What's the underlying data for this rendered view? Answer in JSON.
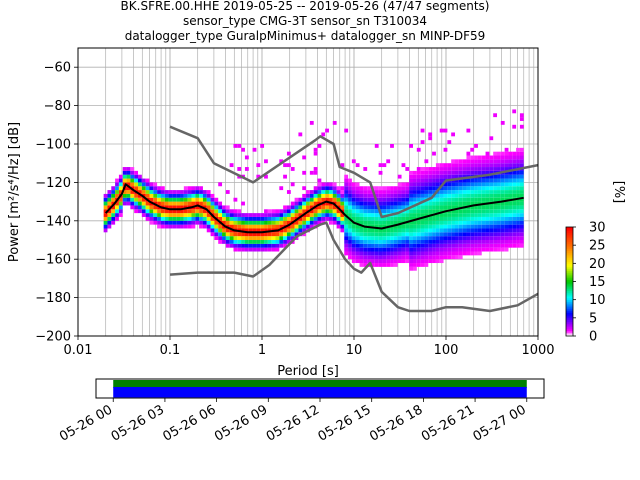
{
  "title_lines": [
    "BK.SFRE.00.HHE   2019-05-25 -- 2019-05-26  (47/47 segments)",
    "sensor_type CMG-3T sensor_sn T310034",
    "datalogger_type GuralpMinimus+ datalogger_sn MINP-DF59"
  ],
  "chart_data": [
    {
      "type": "heatmap",
      "xlabel": "Period [s]",
      "ylabel": "Power [m²/s⁴/Hz] [dB]",
      "x_scale": "log",
      "xlim": [
        0.01,
        1000
      ],
      "ylim": [
        -200,
        -50
      ],
      "x_ticks": [
        {
          "value": 0.01,
          "label": "0.01"
        },
        {
          "value": 0.1,
          "label": "0.1"
        },
        {
          "value": 1,
          "label": "1"
        },
        {
          "value": 10,
          "label": "10"
        },
        {
          "value": 100,
          "label": "100"
        },
        {
          "value": 1000,
          "label": "1000"
        }
      ],
      "y_ticks": [
        -200,
        -180,
        -160,
        -140,
        -120,
        -100,
        -80,
        -60
      ],
      "grid": true,
      "colorbar": {
        "label": "[%]",
        "ticks": [
          0,
          5,
          10,
          15,
          20,
          25,
          30
        ],
        "range": [
          0,
          30
        ]
      },
      "series": [
        {
          "name": "",
          "color": "#000000",
          "points": [
            [
              0.02,
              -136
            ],
            [
              0.025,
              -131
            ],
            [
              0.03,
              -126
            ],
            [
              0.033,
              -121
            ],
            [
              0.04,
              -124
            ],
            [
              0.05,
              -127
            ],
            [
              0.06,
              -130
            ],
            [
              0.08,
              -133
            ],
            [
              0.1,
              -134
            ],
            [
              0.13,
              -134
            ],
            [
              0.17,
              -133
            ],
            [
              0.2,
              -132
            ],
            [
              0.25,
              -134
            ],
            [
              0.3,
              -138
            ],
            [
              0.4,
              -143
            ],
            [
              0.5,
              -145
            ],
            [
              0.7,
              -146
            ],
            [
              1,
              -146
            ],
            [
              1.5,
              -145
            ],
            [
              2,
              -142
            ],
            [
              3,
              -136
            ],
            [
              4,
              -132
            ],
            [
              5,
              -130
            ],
            [
              6,
              -131
            ],
            [
              7,
              -134
            ],
            [
              8,
              -137
            ],
            [
              10,
              -141
            ],
            [
              13,
              -143
            ],
            [
              20,
              -144
            ],
            [
              30,
              -142
            ],
            [
              50,
              -139
            ],
            [
              100,
              -135
            ],
            [
              200,
              -132
            ],
            [
              400,
              -130
            ],
            [
              700,
              -128
            ]
          ]
        },
        {
          "name": "",
          "color": "#666666",
          "points": [
            [
              0.1,
              -91
            ],
            [
              0.2,
              -97
            ],
            [
              0.3,
              -110
            ],
            [
              0.8,
              -120
            ],
            [
              3.8,
              -98
            ],
            [
              4.3,
              -96
            ],
            [
              6,
              -100
            ],
            [
              7,
              -112
            ],
            [
              10,
              -115
            ],
            [
              15,
              -120
            ],
            [
              20,
              -138
            ],
            [
              30,
              -136
            ],
            [
              70,
              -128
            ],
            [
              100,
              -119
            ],
            [
              300,
              -116
            ],
            [
              1000,
              -111
            ]
          ]
        },
        {
          "name": "",
          "color": "#666666",
          "points": [
            [
              0.1,
              -168
            ],
            [
              0.2,
              -167
            ],
            [
              0.5,
              -167
            ],
            [
              0.8,
              -169
            ],
            [
              1.2,
              -163
            ],
            [
              2.4,
              -148
            ],
            [
              4.3,
              -142
            ],
            [
              5,
              -141
            ],
            [
              6,
              -150
            ],
            [
              8,
              -160
            ],
            [
              10,
              -165
            ],
            [
              12,
              -167
            ],
            [
              15,
              -162
            ],
            [
              20,
              -177
            ],
            [
              30,
              -185
            ],
            [
              40,
              -187
            ],
            [
              70,
              -187
            ],
            [
              100,
              -185
            ],
            [
              150,
              -185
            ],
            [
              300,
              -187
            ],
            [
              600,
              -184
            ],
            [
              1000,
              -178
            ]
          ]
        }
      ]
    },
    {
      "type": "bar",
      "x_ticks": [
        "05-26 00",
        "05-26 03",
        "05-26 06",
        "05-26 09",
        "05-26 12",
        "05-26 15",
        "05-26 18",
        "05-26 21",
        "05-27 00"
      ],
      "xlim_hours": [
        -1,
        25
      ],
      "series": [
        {
          "name": "",
          "color": "#008000",
          "values": [
            [
              0,
              24
            ]
          ]
        },
        {
          "name": "",
          "color": "#0000ff",
          "values": [
            [
              0,
              24
            ]
          ]
        }
      ]
    }
  ]
}
